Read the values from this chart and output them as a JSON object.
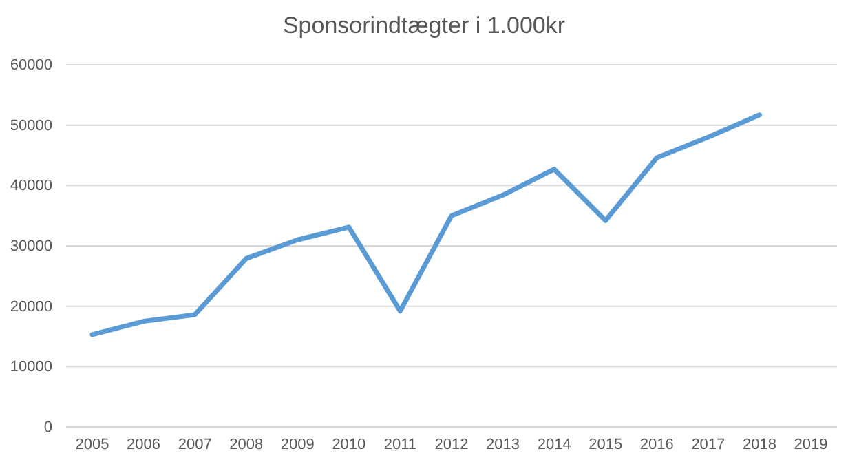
{
  "chart_data": {
    "type": "line",
    "title": "Sponsorindtægter i 1.000kr",
    "categories": [
      "2005",
      "2006",
      "2007",
      "2008",
      "2009",
      "2010",
      "2011",
      "2012",
      "2013",
      "2014",
      "2015",
      "2016",
      "2017",
      "2018",
      "2019"
    ],
    "series": [
      {
        "color": "#5b9bd5",
        "values": [
          15300,
          17500,
          18600,
          27900,
          31000,
          33100,
          19200,
          35000,
          38400,
          42700,
          34200,
          44600,
          48000,
          51700,
          null
        ]
      }
    ],
    "ylim": [
      0,
      60000
    ],
    "yticks": [
      0,
      10000,
      20000,
      30000,
      40000,
      50000,
      60000
    ],
    "grid": "y",
    "marker": "none",
    "line_style": "solid"
  }
}
